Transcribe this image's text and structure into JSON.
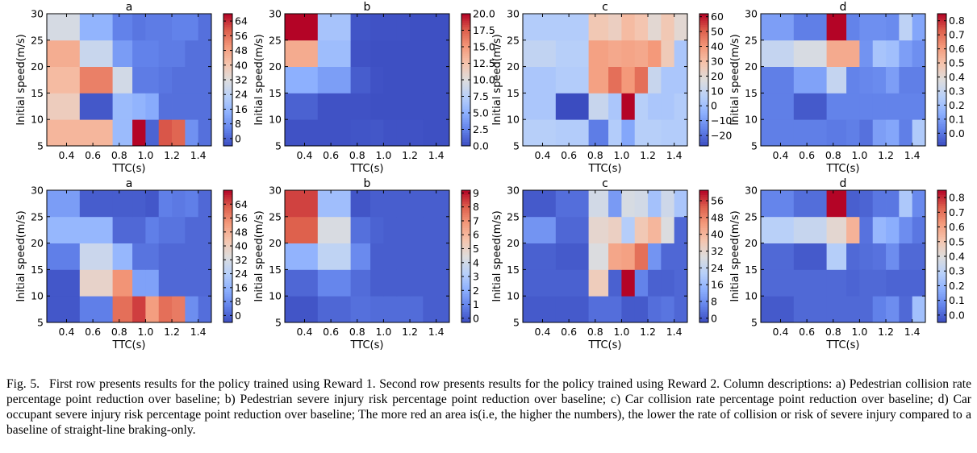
{
  "caption": {
    "label": "Fig. 5.",
    "text": "First row presents results for the policy trained using Reward 1. Second row presents results for the policy trained using Reward 2. Column descriptions: a) Pedestrian collision rate percentage point reduction over baseline; b) Pedestrian severe injury risk percentage point reduction over baseline; c) Car collision rate percentage point reduction over baseline; d) Car occupant severe injury risk percentage point reduction over baseline; The more red an area is(i.e, the higher the numbers), the lower the rate of collision or risk of severe injury compared to a baseline of straight-line braking-only."
  },
  "chart_data": [
    {
      "type": "heatmap",
      "row": 1,
      "title": "a",
      "xlabel": "TTC(s)",
      "ylabel": "Initial speed(m/s)",
      "colormap": "coolwarm",
      "x_edges": [
        0.25,
        0.5,
        0.75,
        0.9,
        1.0,
        1.1,
        1.2,
        1.3,
        1.4,
        1.5
      ],
      "y_edges": [
        5,
        10,
        15,
        20,
        25,
        30
      ],
      "xticks": [
        "0.4",
        "0.6",
        "0.8",
        "1.0",
        "1.2",
        "1.4"
      ],
      "yticks": [
        "5",
        "10",
        "15",
        "20",
        "25",
        "30"
      ],
      "vmin": -4,
      "vmax": 68,
      "cbar_ticks": [
        "0",
        "8",
        "16",
        "24",
        "32",
        "40",
        "48",
        "56",
        "64"
      ],
      "values": [
        [
          44,
          44,
          17,
          68,
          0,
          60,
          58,
          8,
          2
        ],
        [
          38,
          -2,
          17,
          15,
          13,
          2,
          2,
          2,
          2
        ],
        [
          43,
          54,
          29,
          4,
          4,
          3,
          2,
          2,
          2
        ],
        [
          46,
          27,
          10,
          5,
          5,
          4,
          4,
          2,
          2
        ],
        [
          30,
          15,
          5,
          3,
          4,
          4,
          5,
          5,
          2
        ]
      ]
    },
    {
      "type": "heatmap",
      "row": 1,
      "title": "b",
      "xlabel": "TTC(s)",
      "ylabel": "Initial speed(m/s)",
      "colormap": "coolwarm",
      "x_edges": [
        0.25,
        0.5,
        0.75,
        0.9,
        1.0,
        1.1,
        1.2,
        1.3,
        1.4,
        1.5
      ],
      "y_edges": [
        5,
        10,
        15,
        20,
        25,
        30
      ],
      "xticks": [
        "0.4",
        "0.6",
        "0.8",
        "1.0",
        "1.2",
        "1.4"
      ],
      "yticks": [
        "5",
        "10",
        "15",
        "20",
        "25",
        "30"
      ],
      "vmin": 0,
      "vmax": 20,
      "cbar_ticks": [
        "0.0",
        "2.5",
        "5.0",
        "7.5",
        "10.0",
        "12.5",
        "15.0",
        "17.5",
        "20.0"
      ],
      "values": [
        [
          0.3,
          0.3,
          0.4,
          0.5,
          0.3,
          0.3,
          0.3,
          0.2,
          0.2
        ],
        [
          1.0,
          0.3,
          0.3,
          0.2,
          0.2,
          0.2,
          0.2,
          0.2,
          0.2
        ],
        [
          5.0,
          4.0,
          0.8,
          0.3,
          0.2,
          0.2,
          0.2,
          0.2,
          0.2
        ],
        [
          14.0,
          6.0,
          0.3,
          0.2,
          0.2,
          0.2,
          0.2,
          0.2,
          0.2
        ],
        [
          20.0,
          6.5,
          0.4,
          0.3,
          0.3,
          0.3,
          0.2,
          0.2,
          0.2
        ]
      ]
    },
    {
      "type": "heatmap",
      "row": 1,
      "title": "c",
      "xlabel": "TTC(s)",
      "ylabel": "Initial speed(m/s)",
      "colormap": "coolwarm",
      "x_edges": [
        0.25,
        0.5,
        0.75,
        0.9,
        1.0,
        1.1,
        1.2,
        1.3,
        1.4,
        1.5
      ],
      "y_edges": [
        5,
        10,
        15,
        20,
        25,
        30
      ],
      "xticks": [
        "0.4",
        "0.6",
        "0.8",
        "1.0",
        "1.2",
        "1.4"
      ],
      "yticks": [
        "5",
        "10",
        "15",
        "20",
        "25",
        "30"
      ],
      "vmin": -27,
      "vmax": 62,
      "cbar_ticks": [
        "-20",
        "-10",
        "0",
        "10",
        "20",
        "30",
        "40",
        "50",
        "60"
      ],
      "values": [
        [
          6,
          5,
          -17,
          5,
          -7,
          6,
          6,
          5,
          5
        ],
        [
          3,
          -27,
          11,
          3,
          62,
          6,
          3,
          3,
          5
        ],
        [
          3,
          5,
          38,
          48,
          40,
          48,
          11,
          3,
          3
        ],
        [
          9,
          6,
          38,
          36,
          37,
          36,
          40,
          26,
          3
        ],
        [
          5,
          5,
          27,
          24,
          31,
          28,
          20,
          27,
          20
        ]
      ]
    },
    {
      "type": "heatmap",
      "row": 1,
      "title": "d",
      "xlabel": "TTC(s)",
      "ylabel": "Initial speed(m/s)",
      "colormap": "coolwarm",
      "x_edges": [
        0.25,
        0.5,
        0.75,
        0.9,
        1.0,
        1.1,
        1.2,
        1.3,
        1.4,
        1.5
      ],
      "y_edges": [
        5,
        10,
        15,
        20,
        25,
        30
      ],
      "xticks": [
        "0.4",
        "0.6",
        "0.8",
        "1.0",
        "1.2",
        "1.4"
      ],
      "yticks": [
        "5",
        "10",
        "15",
        "20",
        "25",
        "30"
      ],
      "vmin": -0.09,
      "vmax": 0.85,
      "cbar_ticks": [
        "0.0",
        "0.1",
        "0.2",
        "0.3",
        "0.4",
        "0.5",
        "0.6",
        "0.7",
        "0.8"
      ],
      "values": [
        [
          0.02,
          0.02,
          0.01,
          0.02,
          -0.01,
          0.1,
          0.12,
          0.02,
          0.24
        ],
        [
          0.02,
          -0.06,
          0.03,
          0.03,
          0.03,
          0.03,
          0.03,
          0.03,
          0.03
        ],
        [
          0.02,
          0.11,
          0.3,
          0.03,
          0.04,
          0.05,
          0.1,
          0.02,
          0.02
        ],
        [
          0.3,
          0.36,
          0.57,
          0.57,
          0.07,
          0.22,
          0.2,
          0.1,
          0.06
        ],
        [
          0.1,
          0.02,
          0.85,
          0.03,
          0.06,
          0.06,
          0.05,
          0.28,
          0.12
        ]
      ]
    },
    {
      "type": "heatmap",
      "row": 2,
      "title": "a",
      "xlabel": "TTC(s)",
      "ylabel": "Initial speed(m/s)",
      "colormap": "coolwarm",
      "x_edges": [
        0.25,
        0.5,
        0.75,
        0.9,
        1.0,
        1.1,
        1.2,
        1.3,
        1.4,
        1.5
      ],
      "y_edges": [
        5,
        10,
        15,
        20,
        25,
        30
      ],
      "xticks": [
        "0.4",
        "0.6",
        "0.8",
        "1.0",
        "1.2",
        "1.4"
      ],
      "yticks": [
        "5",
        "10",
        "15",
        "20",
        "25",
        "30"
      ],
      "vmin": -4,
      "vmax": 72,
      "cbar_ticks": [
        "0",
        "8",
        "16",
        "24",
        "32",
        "40",
        "48",
        "56",
        "64"
      ],
      "values": [
        [
          -2,
          5,
          60,
          66,
          52,
          60,
          58,
          8,
          2
        ],
        [
          -2,
          38,
          54,
          12,
          12,
          1,
          1,
          1,
          1
        ],
        [
          5,
          29,
          17,
          3,
          3,
          1,
          1,
          1,
          1
        ],
        [
          17,
          17,
          1,
          1,
          5,
          3,
          3,
          1,
          1
        ],
        [
          11,
          -1,
          -1,
          -1,
          -2,
          5,
          4,
          5,
          1
        ]
      ]
    },
    {
      "type": "heatmap",
      "row": 2,
      "title": "b",
      "xlabel": "TTC(s)",
      "ylabel": "Initial speed(m/s)",
      "colormap": "coolwarm",
      "x_edges": [
        0.25,
        0.5,
        0.75,
        0.9,
        1.0,
        1.1,
        1.2,
        1.3,
        1.4,
        1.5
      ],
      "y_edges": [
        5,
        10,
        15,
        20,
        25,
        30
      ],
      "xticks": [
        "0.4",
        "0.6",
        "0.8",
        "1.0",
        "1.2",
        "1.4"
      ],
      "yticks": [
        "5",
        "10",
        "15",
        "20",
        "25",
        "30"
      ],
      "vmin": -0.3,
      "vmax": 9.2,
      "cbar_ticks": [
        "0",
        "1",
        "2",
        "3",
        "4",
        "5",
        "6",
        "7",
        "8",
        "9"
      ],
      "values": [
        [
          -0.1,
          0.3,
          0.5,
          0.4,
          0.4,
          0.4,
          0.4,
          0.1,
          0.1
        ],
        [
          0.3,
          1.0,
          0.4,
          0.1,
          0.1,
          0.1,
          0.1,
          0.1,
          0.1
        ],
        [
          2.2,
          3.5,
          1.1,
          0.1,
          0.1,
          0.1,
          0.1,
          0.1,
          0.1
        ],
        [
          8.0,
          4.3,
          0.5,
          0.2,
          0.1,
          0.1,
          0.1,
          0.1,
          0.1
        ],
        [
          8.4,
          2.6,
          -0.1,
          0.1,
          0.1,
          0.1,
          0.1,
          0.1,
          0.1
        ]
      ]
    },
    {
      "type": "heatmap",
      "row": 2,
      "title": "c",
      "xlabel": "TTC(s)",
      "ylabel": "Initial speed(m/s)",
      "colormap": "coolwarm",
      "x_edges": [
        0.25,
        0.5,
        0.75,
        0.9,
        1.0,
        1.1,
        1.2,
        1.3,
        1.4,
        1.5
      ],
      "y_edges": [
        5,
        10,
        15,
        20,
        25,
        30
      ],
      "xticks": [
        "0.4",
        "0.6",
        "0.8",
        "1.0",
        "1.2",
        "1.4"
      ],
      "yticks": [
        "5",
        "10",
        "15",
        "20",
        "25",
        "30"
      ],
      "vmin": -2,
      "vmax": 61,
      "cbar_ticks": [
        "0",
        "8",
        "16",
        "24",
        "32",
        "40",
        "48",
        "56"
      ],
      "values": [
        [
          0,
          0,
          3,
          3,
          0,
          0,
          3,
          4,
          2
        ],
        [
          1,
          1,
          35,
          1,
          61,
          6,
          1,
          1,
          2
        ],
        [
          1,
          0,
          29,
          43,
          44,
          51,
          9,
          2,
          2
        ],
        [
          9,
          2,
          32,
          34,
          21,
          36,
          40,
          29,
          2
        ],
        [
          0,
          3,
          27,
          10,
          28,
          27,
          18,
          26,
          19
        ]
      ]
    },
    {
      "type": "heatmap",
      "row": 2,
      "title": "d",
      "xlabel": "TTC(s)",
      "ylabel": "Initial speed(m/s)",
      "colormap": "coolwarm",
      "x_edges": [
        0.25,
        0.5,
        0.75,
        0.9,
        1.0,
        1.1,
        1.2,
        1.3,
        1.4,
        1.5
      ],
      "y_edges": [
        5,
        10,
        15,
        20,
        25,
        30
      ],
      "xticks": [
        "0.4",
        "0.6",
        "0.8",
        "1.0",
        "1.2",
        "1.4"
      ],
      "yticks": [
        "5",
        "10",
        "15",
        "20",
        "25",
        "30"
      ],
      "vmin": -0.05,
      "vmax": 0.85,
      "cbar_ticks": [
        "0.0",
        "0.1",
        "0.2",
        "0.3",
        "0.4",
        "0.5",
        "0.6",
        "0.7",
        "0.8"
      ],
      "values": [
        [
          -0.02,
          0.01,
          0.01,
          0.01,
          0.01,
          0.06,
          0.09,
          0.01,
          0.23
        ],
        [
          0.01,
          0.01,
          0.01,
          0.0,
          0.01,
          0.01,
          0.0,
          0.0,
          0.0
        ],
        [
          0.01,
          -0.02,
          0.28,
          0.01,
          0.02,
          0.03,
          0.09,
          0.01,
          0.01
        ],
        [
          0.29,
          0.33,
          0.43,
          0.56,
          0.03,
          0.2,
          0.17,
          0.09,
          0.04
        ],
        [
          0.07,
          0.02,
          0.85,
          -0.01,
          0.0,
          0.04,
          0.04,
          0.26,
          0.08
        ]
      ]
    }
  ]
}
